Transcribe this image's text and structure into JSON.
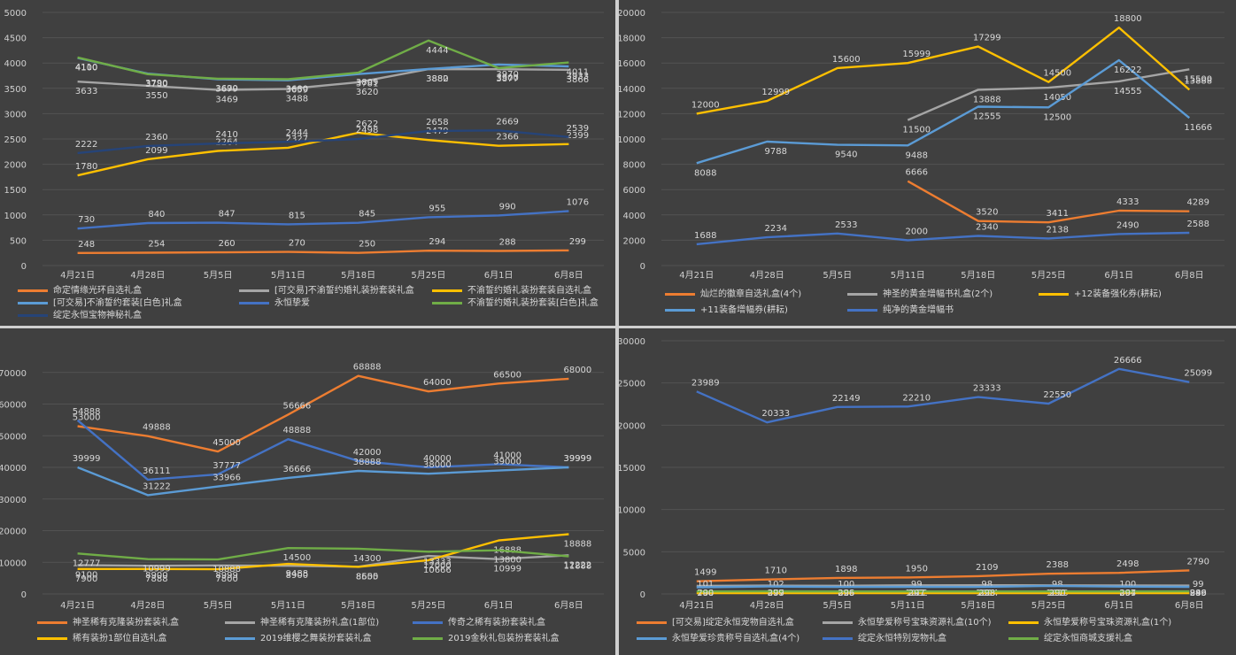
{
  "chart_data": [
    {
      "type": "line",
      "categories": [
        "4月21日",
        "4月28日",
        "5月5日",
        "5月11日",
        "5月18日",
        "5月25日",
        "6月1日",
        "6月8日"
      ],
      "ylim": [
        0,
        5000
      ],
      "yticks": [
        0,
        500,
        1000,
        1500,
        2000,
        2500,
        3000,
        3500,
        4000,
        4500,
        5000
      ],
      "grid": true,
      "legend_position": "bottom",
      "series": [
        {
          "name": "命定情缘光环自选礼盒",
          "color": "#ed7d31",
          "values": [
            248,
            254,
            260,
            270,
            250,
            294,
            288,
            299
          ]
        },
        {
          "name": "[可交易]不渝誓约婚礼装扮套装礼盒",
          "color": "#a5a5a5",
          "values": [
            3633,
            3550,
            3469,
            3488,
            3620,
            3880,
            3877,
            3866
          ]
        },
        {
          "name": "不渝誓约婚礼装扮套装自选礼盒",
          "color": "#ffc000",
          "values": [
            1780,
            2099,
            2264,
            2327,
            2622,
            2479,
            2366,
            2399
          ]
        },
        {
          "name": "[可交易]不渝誓约套装[白色]礼盒",
          "color": "#5b9bd5",
          "values": [
            4100,
            3790,
            3679,
            3659,
            3781,
            3882,
            3970,
            3933
          ]
        },
        {
          "name": "永恒挚爱",
          "color": "#4472c4",
          "values": [
            730,
            840,
            847,
            815,
            845,
            955,
            990,
            1076
          ]
        },
        {
          "name": "不渝誓约婚礼装扮套装[白色]礼盒",
          "color": "#70ad47",
          "values": [
            4110,
            3780,
            3690,
            3680,
            3809,
            4444,
            3900,
            4011
          ]
        },
        {
          "name": "绽定永恒宝物神秘礼盒",
          "color": "#264478",
          "values": [
            2222,
            2360,
            2410,
            2444,
            2498,
            2658,
            2669,
            2539
          ]
        }
      ]
    },
    {
      "type": "line",
      "categories": [
        "4月21日",
        "4月28日",
        "5月5日",
        "5月11日",
        "5月18日",
        "5月25日",
        "6月1日",
        "6月8日"
      ],
      "ylim": [
        0,
        20000
      ],
      "yticks": [
        0,
        2000,
        4000,
        6000,
        8000,
        10000,
        12000,
        14000,
        16000,
        18000,
        20000
      ],
      "grid": true,
      "legend_position": "bottom",
      "series": [
        {
          "name": "灿烂的徽章自选礼盒(4个)",
          "color": "#ed7d31",
          "values": [
            null,
            null,
            null,
            6666,
            3520,
            3411,
            4333,
            4289
          ]
        },
        {
          "name": "神圣的黄金增幅书礼盒(2个)",
          "color": "#a5a5a5",
          "values": [
            null,
            null,
            null,
            11500,
            13888,
            14050,
            14555,
            15500
          ]
        },
        {
          "name": "+12装备强化券(耕耘)",
          "color": "#ffc000",
          "values": [
            12000,
            12999,
            15600,
            15999,
            17299,
            14500,
            18800,
            13888
          ]
        },
        {
          "name": "+11装备增幅券(耕耘)",
          "color": "#5b9bd5",
          "values": [
            8088,
            9788,
            9540,
            9488,
            12555,
            12500,
            16222,
            11666
          ]
        },
        {
          "name": "纯净的黄金增幅书",
          "color": "#4472c4",
          "values": [
            1688,
            2234,
            2533,
            2000,
            2340,
            2138,
            2490,
            2588
          ]
        }
      ]
    },
    {
      "type": "line",
      "categories": [
        "4月21日",
        "4月28日",
        "5月5日",
        "5月11日",
        "5月18日",
        "5月25日",
        "6月1日",
        "6月8日"
      ],
      "ylim": [
        0,
        80000
      ],
      "yticks": [
        0,
        10000,
        20000,
        30000,
        40000,
        50000,
        60000,
        70000
      ],
      "grid": true,
      "legend_position": "bottom",
      "series": [
        {
          "name": "神圣稀有克隆装扮套装礼盒",
          "color": "#ed7d31",
          "values": [
            53000,
            49888,
            45000,
            56666,
            68888,
            64000,
            66500,
            68000
          ]
        },
        {
          "name": "神圣稀有克隆装扮礼盒(1部位)",
          "color": "#a5a5a5",
          "values": [
            9100,
            8900,
            8999,
            8900,
            8600,
            12000,
            10999,
            12222
          ]
        },
        {
          "name": "传奇之稀有装扮套装礼盒",
          "color": "#4472c4",
          "values": [
            54888,
            36111,
            37777,
            48888,
            42000,
            40000,
            41000,
            39999
          ]
        },
        {
          "name": "稀有装扮1部位自选礼盒",
          "color": "#ffc000",
          "values": [
            7900,
            7888,
            7800,
            9488,
            8555,
            10666,
            16888,
            18888
          ]
        },
        {
          "name": "2019维樱之舞装扮套装礼盒",
          "color": "#5b9bd5",
          "values": [
            39999,
            31222,
            33966,
            36666,
            38888,
            38000,
            39000,
            39999
          ]
        },
        {
          "name": "2019金秋礼包装扮套装礼盒",
          "color": "#70ad47",
          "values": [
            12777,
            10999,
            10888,
            14500,
            14300,
            13333,
            13800,
            11888
          ]
        }
      ]
    },
    {
      "type": "line",
      "categories": [
        "4月21日",
        "4月28日",
        "5月5日",
        "5月11日",
        "5月18日",
        "5月25日",
        "6月1日",
        "6月8日"
      ],
      "ylim": [
        0,
        30000
      ],
      "yticks": [
        0,
        5000,
        10000,
        15000,
        20000,
        25000,
        30000
      ],
      "grid": true,
      "legend_position": "bottom",
      "series": [
        {
          "name": "[可交易]绽定永恒宠物自选礼盒",
          "color": "#ed7d31",
          "values": [
            1499,
            1710,
            1898,
            1950,
            2109,
            2388,
            2498,
            2790
          ]
        },
        {
          "name": "永恒挚爱称号宝珠资源礼盒(10个)",
          "color": "#a5a5a5",
          "values": [
            944,
            988,
            968,
            1022,
            1024,
            1019,
            999,
            986
          ]
        },
        {
          "name": "永恒挚爱称号宝珠资源礼盒(1个)",
          "color": "#ffc000",
          "values": [
            101,
            102,
            100,
            99,
            98,
            98,
            100,
            99
          ]
        },
        {
          "name": "永恒挚爱珍贵称号自选礼盒(4个)",
          "color": "#5b9bd5",
          "values": [
            788,
            877,
            829,
            841,
            828,
            955,
            867,
            840
          ]
        },
        {
          "name": "绽定永恒特别宠物礼盒",
          "color": "#4472c4",
          "values": [
            23989,
            20333,
            22149,
            22210,
            23333,
            22550,
            26666,
            25099
          ]
        },
        {
          "name": "绽定永恒商城支援礼盒",
          "color": "#70ad47",
          "values": [
            290,
            299,
            296,
            297,
            298,
            290,
            294,
            299
          ]
        }
      ]
    }
  ]
}
